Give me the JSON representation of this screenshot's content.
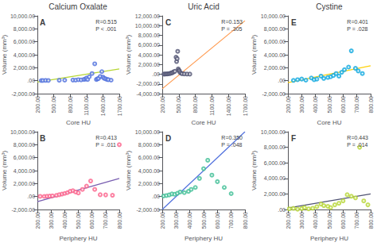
{
  "chart_data": [
    {
      "type": "scatter",
      "title": "Calcium Oxalate",
      "xlabel": "Core HU",
      "ylabel": "Volume (mm³)",
      "annotations": [
        "A",
        "R=0.515",
        "P < .001"
      ],
      "grid": false,
      "xlim": [
        200,
        1700
      ],
      "xticks": [
        {
          "value": 200,
          "label": "200.00"
        },
        {
          "value": 500,
          "label": "500.00"
        },
        {
          "value": 800,
          "label": "800.00"
        },
        {
          "value": 1100,
          "label": "1100.00"
        },
        {
          "value": 1400,
          "label": "1400.00"
        },
        {
          "value": 1700,
          "label": "1700.00"
        }
      ],
      "ylim": [
        -2000,
        10000
      ],
      "yticks": [
        {
          "value": -2000,
          "label": "-2,000.00"
        },
        {
          "value": 0,
          "label": ".00"
        },
        {
          "value": 2000,
          "label": "2,000.00"
        },
        {
          "value": 4000,
          "label": "4,000.00"
        },
        {
          "value": 6000,
          "label": "6,000.00"
        },
        {
          "value": 8000,
          "label": "8,000.00"
        },
        {
          "value": 10000,
          "label": "10,000.00"
        }
      ],
      "series": [
        {
          "type": "scatter",
          "marker": "hollow circle",
          "x": [
            270,
            300,
            350,
            400,
            600,
            700,
            850,
            900,
            950,
            1000,
            1050,
            1080,
            1100,
            1120,
            1150,
            1200,
            1250,
            1280,
            1300,
            1320,
            1350,
            1380,
            1400,
            1420,
            1450,
            1480,
            1500,
            1550
          ],
          "values": [
            20,
            30,
            40,
            30,
            60,
            80,
            100,
            80,
            150,
            120,
            200,
            250,
            400,
            180,
            600,
            1100,
            2600,
            180,
            280,
            350,
            650,
            1400,
            550,
            380,
            280,
            180,
            150,
            80
          ]
        },
        {
          "type": "line",
          "x": [
            200,
            1700
          ],
          "values": [
            -200,
            1800
          ]
        }
      ]
    },
    {
      "type": "scatter",
      "title": "Uric Acid",
      "xlabel": "Core HU",
      "ylabel": "Volume (mm³)",
      "annotations": [
        "C",
        "R=0.153",
        "P = .305"
      ],
      "grid": false,
      "xlim": [
        200,
        1700
      ],
      "xticks": [
        {
          "value": 200,
          "label": "200.00"
        },
        {
          "value": 500,
          "label": "500.00"
        },
        {
          "value": 800,
          "label": "800.00"
        },
        {
          "value": 1100,
          "label": "1100.00"
        },
        {
          "value": 1400,
          "label": "1400.00"
        },
        {
          "value": 1700,
          "label": "1700.00"
        }
      ],
      "ylim": [
        -4000,
        12000
      ],
      "yticks": [
        {
          "value": -4000,
          "label": "-4,000.00"
        },
        {
          "value": -2000,
          "label": "-2,000.00"
        },
        {
          "value": 0,
          "label": ".00"
        },
        {
          "value": 2000,
          "label": "2,000.00"
        },
        {
          "value": 4000,
          "label": "4,000.00"
        },
        {
          "value": 6000,
          "label": "6,000.00"
        },
        {
          "value": 8000,
          "label": "8,000.00"
        },
        {
          "value": 10000,
          "label": "10,000.00"
        },
        {
          "value": 12000,
          "label": "12,000.00"
        }
      ],
      "series": [
        {
          "type": "scatter",
          "marker": "hollow circle",
          "x": [
            230,
            250,
            270,
            290,
            310,
            330,
            350,
            370,
            390,
            410,
            430,
            450,
            460,
            470,
            480,
            490,
            500,
            510,
            520,
            540,
            560,
            600,
            650,
            700
          ],
          "values": [
            20,
            30,
            40,
            60,
            80,
            120,
            180,
            250,
            350,
            500,
            600,
            3500,
            2600,
            3200,
            4700,
            1100,
            800,
            700,
            400,
            200,
            100,
            60,
            30,
            20
          ]
        },
        {
          "type": "line",
          "x": [
            200,
            1700
          ],
          "values": [
            -3000,
            11000
          ]
        }
      ]
    },
    {
      "type": "scatter",
      "title": "Cystine",
      "xlabel": "Core HU",
      "ylabel": "Volume (mm³)",
      "annotations": [
        "E",
        "R=0.401",
        "P = .028"
      ],
      "grid": false,
      "xlim": [
        200,
        800
      ],
      "xticks": [
        {
          "value": 200,
          "label": "200.00"
        },
        {
          "value": 300,
          "label": "300.00"
        },
        {
          "value": 400,
          "label": "400.00"
        },
        {
          "value": 500,
          "label": "500.00"
        },
        {
          "value": 600,
          "label": "600.00"
        },
        {
          "value": 700,
          "label": "700.00"
        },
        {
          "value": 800,
          "label": "800.00"
        }
      ],
      "ylim": [
        -2000,
        10000
      ],
      "yticks": [
        {
          "value": -2000,
          "label": "-2,000.00"
        },
        {
          "value": 0,
          "label": ".00"
        },
        {
          "value": 2000,
          "label": "2,000.00"
        },
        {
          "value": 4000,
          "label": "4,000.00"
        },
        {
          "value": 6000,
          "label": "6,000.00"
        },
        {
          "value": 8000,
          "label": "8,000.00"
        },
        {
          "value": 10000,
          "label": "10,000.00"
        }
      ],
      "series": [
        {
          "type": "scatter",
          "marker": "hollow circle",
          "x": [
            240,
            270,
            300,
            330,
            370,
            390,
            410,
            440,
            460,
            490,
            510,
            530,
            550,
            570,
            590,
            610,
            640,
            660,
            690,
            710,
            740
          ],
          "values": [
            40,
            150,
            250,
            80,
            420,
            150,
            250,
            700,
            350,
            500,
            600,
            800,
            1100,
            700,
            1300,
            1700,
            2100,
            4600,
            1900,
            1500,
            1100
          ]
        },
        {
          "type": "line",
          "x": [
            200,
            800
          ],
          "values": [
            -300,
            2300
          ]
        }
      ]
    },
    {
      "type": "scatter",
      "xlabel": "Periphery HU",
      "ylabel": "Volume (mm³)",
      "annotations": [
        "B",
        "R=0.413",
        "P = .011"
      ],
      "grid": false,
      "xlim": [
        200,
        800
      ],
      "xticks": [
        {
          "value": 200,
          "label": "200.00"
        },
        {
          "value": 300,
          "label": "300.00"
        },
        {
          "value": 400,
          "label": "400.00"
        },
        {
          "value": 500,
          "label": "500.00"
        },
        {
          "value": 600,
          "label": "600.00"
        },
        {
          "value": 700,
          "label": "700.00"
        },
        {
          "value": 800,
          "label": "800.00"
        }
      ],
      "ylim": [
        -2000,
        10000
      ],
      "yticks": [
        {
          "value": -2000,
          "label": "-2,000.00"
        },
        {
          "value": 0,
          "label": ".00"
        },
        {
          "value": 2000,
          "label": "2,000.00"
        },
        {
          "value": 4000,
          "label": "4,000.00"
        },
        {
          "value": 6000,
          "label": "6,000.00"
        },
        {
          "value": 8000,
          "label": "8,000.00"
        },
        {
          "value": 10000,
          "label": "10,000.00"
        }
      ],
      "series": [
        {
          "type": "scatter",
          "marker": "hollow circle",
          "x": [
            220,
            250,
            270,
            290,
            310,
            340,
            360,
            380,
            400,
            420,
            440,
            460,
            480,
            500,
            530,
            560,
            590,
            620,
            660,
            700,
            750,
            800
          ],
          "values": [
            30,
            20,
            50,
            70,
            100,
            180,
            280,
            380,
            480,
            600,
            800,
            900,
            700,
            550,
            1100,
            1600,
            2400,
            1100,
            280,
            250,
            200,
            8000
          ]
        },
        {
          "type": "line",
          "x": [
            200,
            800
          ],
          "values": [
            -800,
            2800
          ]
        }
      ]
    },
    {
      "type": "scatter",
      "xlabel": "Periphery HU",
      "ylabel": "Volume (mm³)",
      "annotations": [
        "D",
        "R=0.350",
        "P = .048"
      ],
      "grid": false,
      "xlim": [
        200,
        800
      ],
      "xticks": [
        {
          "value": 200,
          "label": "200.00"
        },
        {
          "value": 300,
          "label": "300.00"
        },
        {
          "value": 400,
          "label": "400.00"
        },
        {
          "value": 500,
          "label": "500.00"
        },
        {
          "value": 600,
          "label": "600.00"
        },
        {
          "value": 700,
          "label": "700.00"
        },
        {
          "value": 800,
          "label": "800.00"
        }
      ],
      "ylim": [
        -2000,
        10000
      ],
      "yticks": [
        {
          "value": -2000,
          "label": "-2,000.00"
        },
        {
          "value": 0,
          "label": ".00"
        },
        {
          "value": 2000,
          "label": "2,000.00"
        },
        {
          "value": 4000,
          "label": "4,000.00"
        },
        {
          "value": 6000,
          "label": "6,000.00"
        },
        {
          "value": 8000,
          "label": "8,000.00"
        },
        {
          "value": 10000,
          "label": "10,000.00"
        }
      ],
      "series": [
        {
          "type": "scatter",
          "marker": "hollow circle",
          "x": [
            210,
            230,
            250,
            270,
            290,
            310,
            330,
            360,
            390,
            410,
            440,
            470,
            500,
            530,
            560,
            600,
            650,
            700
          ],
          "values": [
            80,
            150,
            250,
            400,
            350,
            500,
            700,
            600,
            800,
            1100,
            1400,
            2800,
            4300,
            5600,
            3300,
            2300,
            1400,
            450
          ]
        },
        {
          "type": "line",
          "x": [
            200,
            800
          ],
          "values": [
            -2000,
            10000
          ]
        }
      ]
    },
    {
      "type": "scatter",
      "xlabel": "Periphery HU",
      "ylabel": "Volume (mm³)",
      "annotations": [
        "F",
        "R=0.443",
        "P = .014"
      ],
      "grid": false,
      "xlim": [
        200,
        800
      ],
      "xticks": [
        {
          "value": 200,
          "label": "200.00"
        },
        {
          "value": 300,
          "label": "300.00"
        },
        {
          "value": 400,
          "label": "400.00"
        },
        {
          "value": 500,
          "label": "500.00"
        },
        {
          "value": 600,
          "label": "600.00"
        },
        {
          "value": 700,
          "label": "700.00"
        },
        {
          "value": 800,
          "label": "800.00"
        }
      ],
      "ylim": [
        0,
        10000
      ],
      "yticks": [
        {
          "value": 0,
          "label": ".00"
        },
        {
          "value": 2000,
          "label": "2,000.00"
        },
        {
          "value": 4000,
          "label": "4,000.00"
        },
        {
          "value": 6000,
          "label": "6,000.00"
        },
        {
          "value": 8000,
          "label": "8,000.00"
        },
        {
          "value": 10000,
          "label": "10,000.00"
        }
      ],
      "series": [
        {
          "type": "scatter",
          "marker": "hollow circle",
          "x": [
            210,
            240,
            270,
            300,
            320,
            350,
            380,
            410,
            440,
            460,
            490,
            510,
            540,
            570,
            600,
            630,
            660,
            690,
            720,
            750,
            780
          ],
          "values": [
            80,
            150,
            40,
            120,
            250,
            80,
            160,
            360,
            700,
            500,
            400,
            250,
            600,
            800,
            1100,
            1900,
            1700,
            1500,
            8000,
            1100,
            600
          ]
        },
        {
          "type": "line",
          "x": [
            200,
            800
          ],
          "values": [
            200,
            2000
          ]
        }
      ]
    }
  ]
}
